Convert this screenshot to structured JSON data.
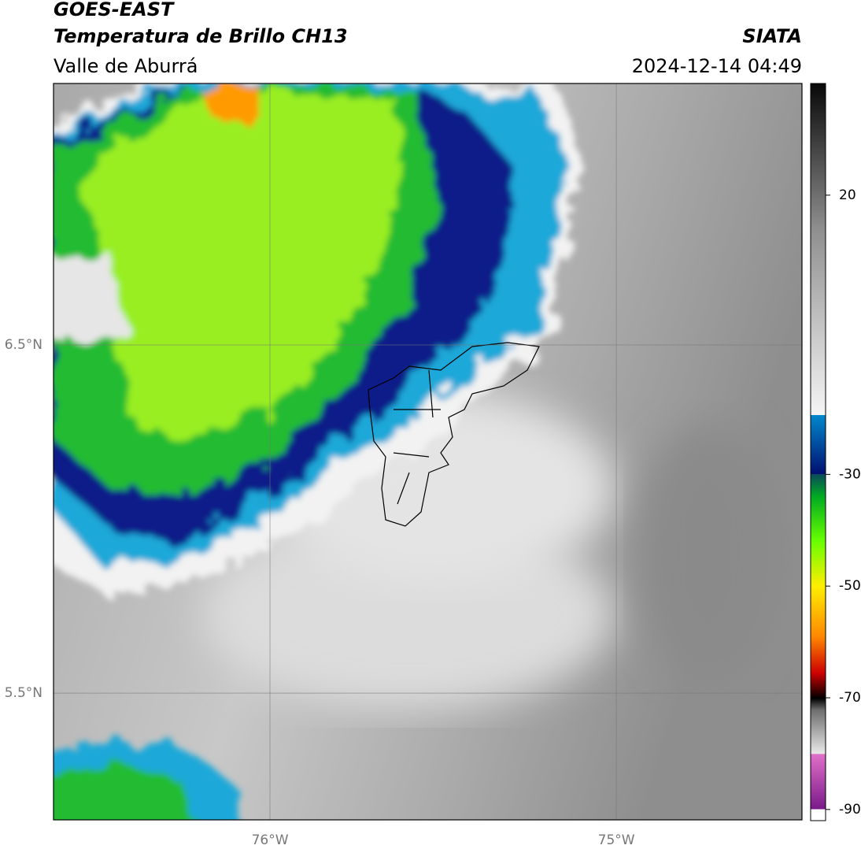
{
  "header": {
    "satellite": "GOES-EAST",
    "product": "Temperatura de Brillo CH13",
    "region": "Valle de Aburrá",
    "agency": "SIATA",
    "datetime": "2024-12-14 04:49"
  },
  "map": {
    "xlim": [
      -76.625,
      -74.464
    ],
    "ylim": [
      5.136,
      7.251
    ],
    "xticks": [
      {
        "value": -76,
        "label": "76°W"
      },
      {
        "value": -75,
        "label": "75°W"
      }
    ],
    "yticks": [
      {
        "value": 6.5,
        "label": "6.5°N"
      },
      {
        "value": 5.5,
        "label": "5.5°N"
      }
    ]
  },
  "colorbar": {
    "lim": [
      -92,
      40
    ],
    "ticks": [
      20,
      -30,
      -50,
      -70,
      -90
    ]
  }
}
